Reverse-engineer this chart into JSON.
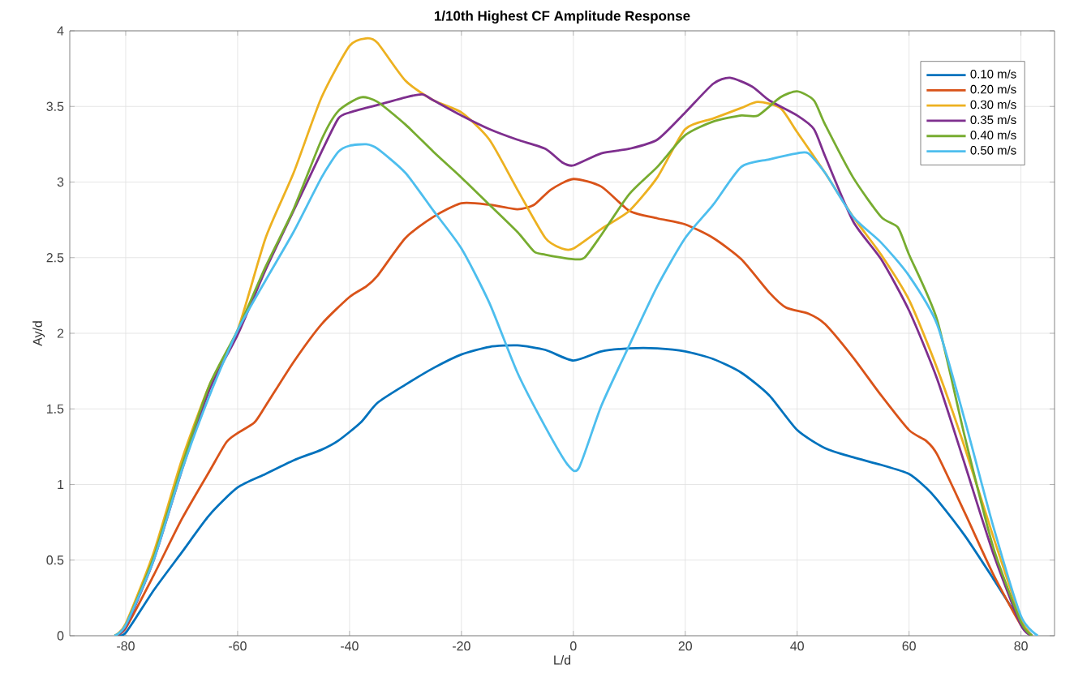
{
  "chart_data": {
    "type": "line",
    "title": "1/10th Highest CF Amplitude Response",
    "xlabel": "L/d",
    "ylabel": "Ay/d",
    "xlim": [
      -90,
      86
    ],
    "ylim": [
      0,
      4
    ],
    "xticks": [
      -80,
      -60,
      -40,
      -20,
      0,
      20,
      40,
      60,
      80
    ],
    "yticks": [
      0,
      0.5,
      1,
      1.5,
      2,
      2.5,
      3,
      3.5,
      4
    ],
    "grid": true,
    "legend": "top right",
    "series": [
      {
        "name": "0.10 m/s",
        "color": "#0072bd",
        "x": [
          -82,
          -80,
          -75,
          -70,
          -65,
          -60,
          -55,
          -50,
          -45,
          -42,
          -38,
          -35,
          -30,
          -25,
          -20,
          -15,
          -10,
          -5,
          0,
          5,
          10,
          15,
          20,
          25,
          30,
          35,
          40,
          45,
          50,
          55,
          60,
          63,
          65,
          70,
          75,
          80,
          82
        ],
        "values": [
          0,
          0.02,
          0.3,
          0.55,
          0.8,
          0.98,
          1.07,
          1.16,
          1.23,
          1.29,
          1.41,
          1.54,
          1.66,
          1.77,
          1.86,
          1.91,
          1.92,
          1.89,
          1.82,
          1.88,
          1.9,
          1.9,
          1.88,
          1.83,
          1.74,
          1.59,
          1.36,
          1.24,
          1.18,
          1.13,
          1.07,
          0.98,
          0.9,
          0.66,
          0.38,
          0.09,
          0
        ]
      },
      {
        "name": "0.20 m/s",
        "color": "#d95319",
        "x": [
          -82,
          -80,
          -75,
          -70,
          -65,
          -62,
          -60,
          -57,
          -55,
          -50,
          -45,
          -40,
          -37,
          -35,
          -30,
          -25,
          -20,
          -15,
          -10,
          -7,
          -4,
          0,
          5,
          10,
          15,
          20,
          25,
          30,
          35,
          38,
          42,
          45,
          50,
          55,
          60,
          63,
          65,
          70,
          75,
          80,
          82
        ],
        "values": [
          0,
          0.05,
          0.4,
          0.77,
          1.09,
          1.28,
          1.34,
          1.41,
          1.52,
          1.81,
          2.06,
          2.24,
          2.31,
          2.38,
          2.63,
          2.77,
          2.86,
          2.85,
          2.82,
          2.85,
          2.95,
          3.02,
          2.97,
          2.81,
          2.76,
          2.72,
          2.63,
          2.49,
          2.27,
          2.17,
          2.13,
          2.06,
          1.84,
          1.59,
          1.36,
          1.29,
          1.2,
          0.81,
          0.41,
          0.07,
          0
        ]
      },
      {
        "name": "0.30 m/s",
        "color": "#edb120",
        "x": [
          -82,
          -80,
          -75,
          -70,
          -65,
          -60,
          -55,
          -50,
          -45,
          -40,
          -37,
          -35,
          -30,
          -25,
          -20,
          -15,
          -10,
          -5,
          -2,
          0,
          5,
          10,
          15,
          20,
          25,
          30,
          33,
          37,
          40,
          45,
          50,
          55,
          60,
          65,
          70,
          75,
          80,
          82
        ],
        "values": [
          0,
          0.08,
          0.55,
          1.16,
          1.66,
          2.02,
          2.63,
          3.06,
          3.56,
          3.9,
          3.95,
          3.92,
          3.67,
          3.54,
          3.46,
          3.28,
          2.95,
          2.63,
          2.56,
          2.56,
          2.69,
          2.81,
          3.03,
          3.35,
          3.42,
          3.49,
          3.53,
          3.49,
          3.33,
          3.06,
          2.77,
          2.52,
          2.22,
          1.77,
          1.24,
          0.66,
          0.11,
          0
        ]
      },
      {
        "name": "0.35 m/s",
        "color": "#7e2f8e",
        "x": [
          -82,
          -80,
          -75,
          -70,
          -65,
          -60,
          -55,
          -50,
          -45,
          -42,
          -40,
          -35,
          -30,
          -27,
          -25,
          -20,
          -15,
          -10,
          -5,
          -2,
          0,
          5,
          10,
          15,
          20,
          25,
          28,
          32,
          35,
          40,
          43,
          45,
          50,
          55,
          60,
          65,
          70,
          75,
          80,
          82
        ],
        "values": [
          0,
          0.06,
          0.5,
          1.09,
          1.63,
          1.99,
          2.42,
          2.81,
          3.2,
          3.42,
          3.46,
          3.51,
          3.56,
          3.58,
          3.54,
          3.44,
          3.35,
          3.28,
          3.22,
          3.13,
          3.11,
          3.19,
          3.22,
          3.28,
          3.46,
          3.65,
          3.69,
          3.63,
          3.54,
          3.44,
          3.35,
          3.17,
          2.74,
          2.49,
          2.15,
          1.7,
          1.13,
          0.55,
          0.07,
          0
        ]
      },
      {
        "name": "0.40 m/s",
        "color": "#77ac30",
        "x": [
          -82,
          -80,
          -75,
          -70,
          -65,
          -60,
          -55,
          -50,
          -45,
          -42,
          -38,
          -35,
          -30,
          -25,
          -20,
          -15,
          -10,
          -7,
          -5,
          0,
          2,
          5,
          10,
          15,
          20,
          25,
          30,
          33,
          37,
          40,
          43,
          45,
          50,
          55,
          58,
          60,
          65,
          70,
          75,
          80,
          82
        ],
        "values": [
          0,
          0.07,
          0.52,
          1.12,
          1.66,
          2.02,
          2.44,
          2.82,
          3.28,
          3.47,
          3.56,
          3.53,
          3.38,
          3.2,
          3.03,
          2.85,
          2.67,
          2.54,
          2.52,
          2.49,
          2.5,
          2.65,
          2.92,
          3.1,
          3.31,
          3.4,
          3.44,
          3.44,
          3.56,
          3.6,
          3.54,
          3.38,
          3.03,
          2.77,
          2.7,
          2.52,
          2.09,
          1.31,
          0.59,
          0.09,
          0
        ]
      },
      {
        "name": "0.50 m/s",
        "color": "#4dbeee",
        "x": [
          -82,
          -80,
          -75,
          -70,
          -65,
          -60,
          -55,
          -50,
          -45,
          -42,
          -40,
          -37,
          -35,
          -30,
          -25,
          -20,
          -15,
          -10,
          -5,
          -1,
          1,
          5,
          10,
          15,
          20,
          25,
          30,
          35,
          40,
          42,
          45,
          50,
          55,
          60,
          65,
          70,
          75,
          80,
          83
        ],
        "values": [
          0,
          0.07,
          0.5,
          1.09,
          1.59,
          2.02,
          2.35,
          2.67,
          3.03,
          3.2,
          3.24,
          3.25,
          3.22,
          3.06,
          2.81,
          2.56,
          2.2,
          1.74,
          1.38,
          1.13,
          1.11,
          1.52,
          1.92,
          2.31,
          2.63,
          2.85,
          3.1,
          3.15,
          3.19,
          3.19,
          3.06,
          2.77,
          2.6,
          2.38,
          2.06,
          1.42,
          0.73,
          0.13,
          0
        ]
      }
    ]
  }
}
